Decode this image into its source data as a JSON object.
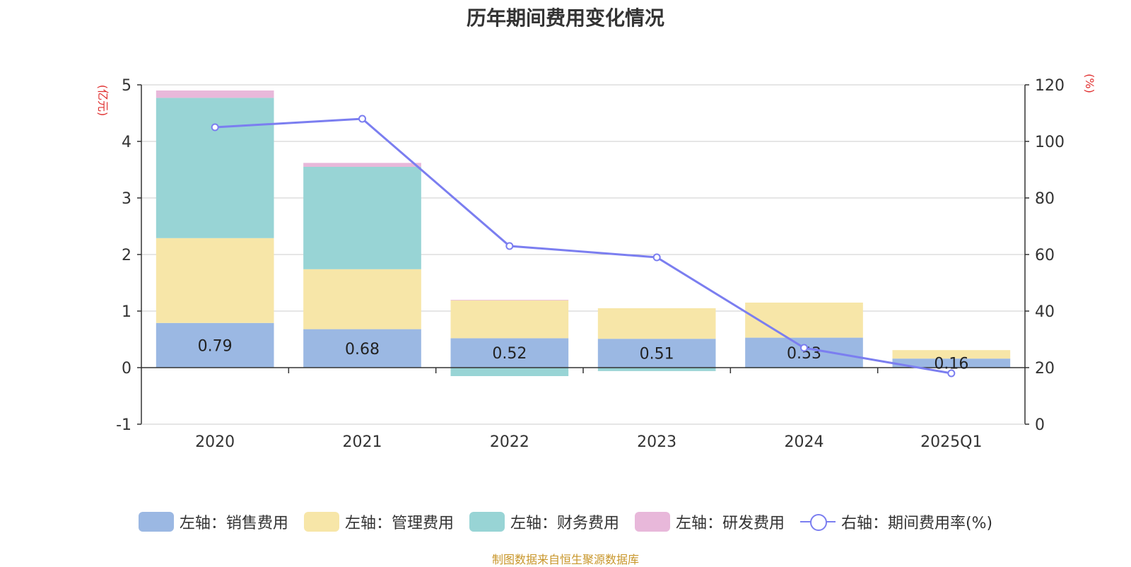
{
  "title": "历年期间费用变化情况",
  "unit_left": "(亿元)",
  "unit_right": "(%)",
  "source": "制图数据来自恒生聚源数据库",
  "colors": {
    "sales": "#9bb8e3",
    "admin": "#f7e6a8",
    "finance": "#98d4d5",
    "rd": "#e8b8da",
    "ratio": "#7b7ef0"
  },
  "legend": [
    {
      "label": "左轴：销售费用",
      "color": "#9bb8e3",
      "kind": "bar"
    },
    {
      "label": "左轴：管理费用",
      "color": "#f7e6a8",
      "kind": "bar"
    },
    {
      "label": "左轴：财务费用",
      "color": "#98d4d5",
      "kind": "bar"
    },
    {
      "label": "左轴：研发费用",
      "color": "#e8b8da",
      "kind": "bar"
    },
    {
      "label": "右轴：期间费用率(%)",
      "color": "#7b7ef0",
      "kind": "line"
    }
  ],
  "chart_data": {
    "type": "bar",
    "stacked": true,
    "categories": [
      "2020",
      "2021",
      "2022",
      "2023",
      "2024",
      "2025Q1"
    ],
    "series": [
      {
        "name": "左轴：销售费用",
        "axis": "left",
        "values": [
          0.79,
          0.68,
          0.52,
          0.51,
          0.53,
          0.16
        ],
        "labels": [
          "0.79",
          "0.68",
          "0.52",
          "0.51",
          "0.53",
          "0.16"
        ]
      },
      {
        "name": "左轴：管理费用",
        "axis": "left",
        "values": [
          1.5,
          1.06,
          0.67,
          0.54,
          0.62,
          0.15
        ]
      },
      {
        "name": "左轴：财务费用",
        "axis": "left",
        "values": [
          2.48,
          1.81,
          -0.15,
          -0.06,
          -0.01,
          0.0
        ]
      },
      {
        "name": "左轴：研发费用",
        "axis": "left",
        "values": [
          0.13,
          0.07,
          0.01,
          0.0,
          0.0,
          0.0
        ]
      },
      {
        "name": "右轴：期间费用率(%)",
        "axis": "right",
        "type": "line",
        "values": [
          105,
          108,
          63,
          59,
          27,
          18
        ]
      }
    ],
    "left_axis": {
      "min": -1,
      "max": 5,
      "ticks": [
        -1,
        0,
        1,
        2,
        3,
        4,
        5
      ]
    },
    "right_axis": {
      "min": 0,
      "max": 120,
      "ticks": [
        0,
        20,
        40,
        60,
        80,
        100,
        120
      ]
    },
    "grid": true,
    "legend_position": "bottom"
  }
}
